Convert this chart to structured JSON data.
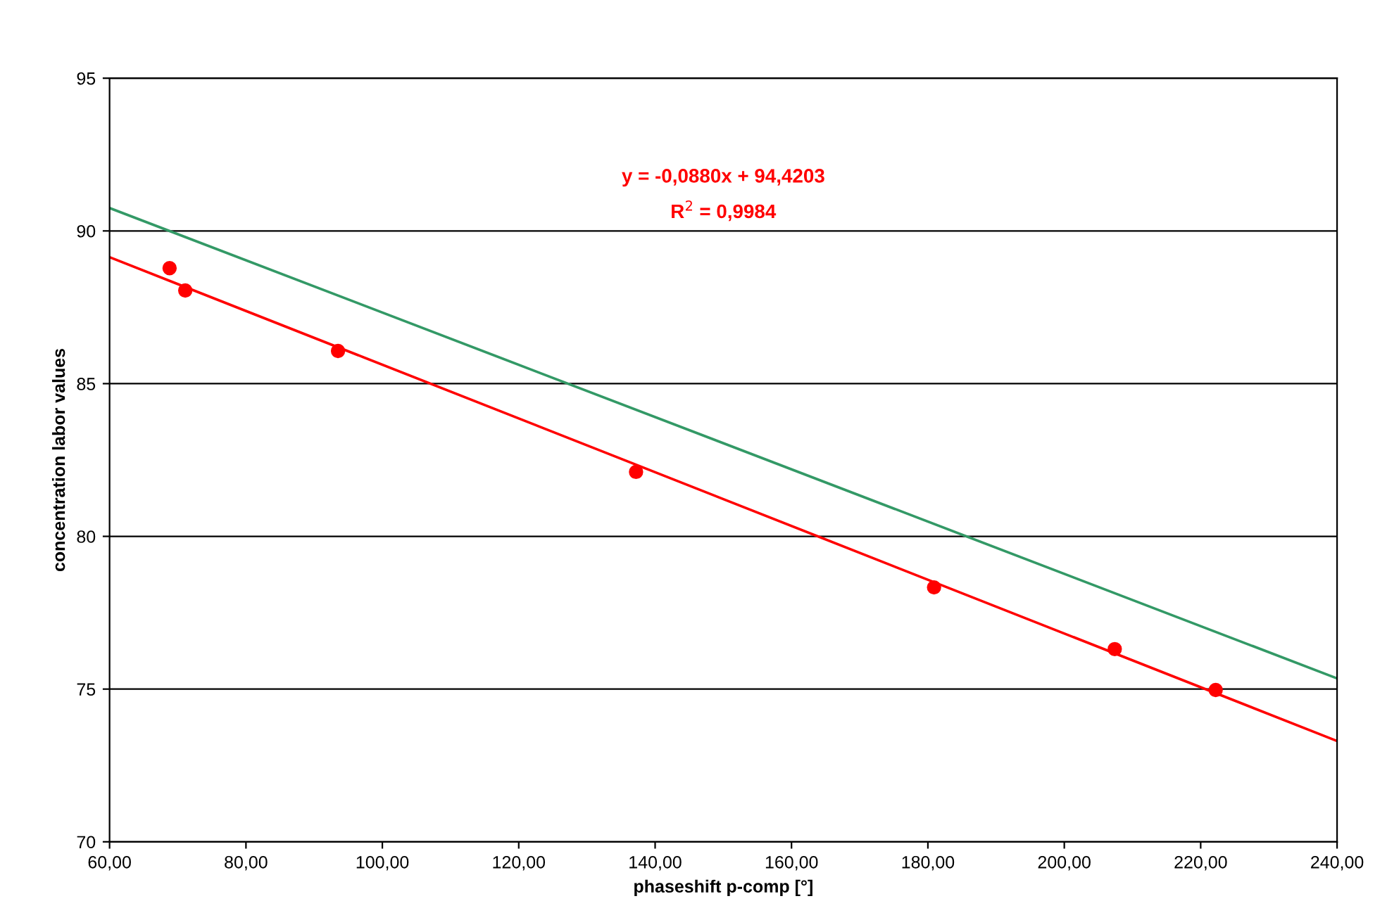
{
  "chart_data": {
    "type": "scatter",
    "xlabel": "phaseshift p-comp [°]",
    "ylabel": "concentration labor values",
    "annotations": [
      "y = -0,0880x + 94,4203",
      "R$^{2}$ = 0,9984"
    ],
    "series": [
      {
        "color": "#ff0000",
        "marker": "circle",
        "x": [
          68.8,
          71.1,
          93.5,
          137.2,
          180.9,
          207.4,
          222.2
        ],
        "values": [
          88.78,
          88.05,
          86.07,
          82.11,
          78.33,
          76.31,
          74.97
        ]
      },
      {
        "type": "line",
        "color": "#ff0000",
        "line_style": "solid",
        "x": [
          60,
          240
        ],
        "values": [
          89.14,
          73.3
        ]
      },
      {
        "type": "line",
        "color": "#339966",
        "line_style": "solid",
        "x": [
          60,
          240
        ],
        "values": [
          90.75,
          75.35
        ]
      }
    ],
    "xlim": [
      60,
      240
    ],
    "ylim": [
      70,
      95
    ],
    "xticks": [
      {
        "value": 60,
        "label": "60,00"
      },
      {
        "value": 80,
        "label": "80,00"
      },
      {
        "value": 100,
        "label": "100,00"
      },
      {
        "value": 120,
        "label": "120,00"
      },
      {
        "value": 140,
        "label": "140,00"
      },
      {
        "value": 160,
        "label": "160,00"
      },
      {
        "value": 180,
        "label": "180,00"
      },
      {
        "value": 200,
        "label": "200,00"
      },
      {
        "value": 220,
        "label": "220,00"
      },
      {
        "value": 240,
        "label": "240,00"
      }
    ],
    "yticks": [
      70,
      75,
      80,
      85,
      90,
      95
    ],
    "grid": "y",
    "legend": false
  }
}
